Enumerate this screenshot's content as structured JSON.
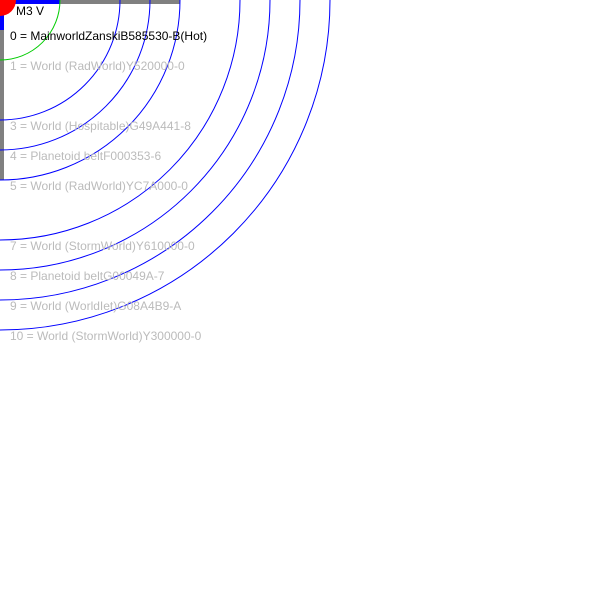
{
  "star": {
    "label": "M3 V",
    "color": "#ff0000"
  },
  "colors": {
    "orbit": "#0000ff",
    "habitable_zone": "#00cc00",
    "frame": "#808080",
    "accent_bar": "#0000ff",
    "mainworld_text": "#000000",
    "other_text": "#bbbbbb"
  },
  "orbits": [
    {
      "index": 0,
      "label": "0 = MainworldZanskiB585530-B(Hot)",
      "mainworld": true
    },
    {
      "index": 1,
      "label": "1 = World  (RadWorld)Y520000-0",
      "mainworld": false
    },
    {
      "index": 2,
      "label": "",
      "mainworld": false
    },
    {
      "index": 3,
      "label": "3 = World  (Hospitable)G49A441-8",
      "mainworld": false
    },
    {
      "index": 4,
      "label": "4 = Planetoid beltF000353-6",
      "mainworld": false
    },
    {
      "index": 5,
      "label": "5 = World  (RadWorld)YC7A000-0",
      "mainworld": false
    },
    {
      "index": 6,
      "label": "",
      "mainworld": false
    },
    {
      "index": 7,
      "label": "7 = World  (StormWorld)Y610000-0",
      "mainworld": false
    },
    {
      "index": 8,
      "label": "8 = Planetoid beltG00049A-7",
      "mainworld": false
    },
    {
      "index": 9,
      "label": "9 = World  (WorldIet)G08A4B9-A",
      "mainworld": false
    },
    {
      "index": 10,
      "label": "10 = World  (StormWorld)Y300000-0",
      "mainworld": false
    }
  ]
}
